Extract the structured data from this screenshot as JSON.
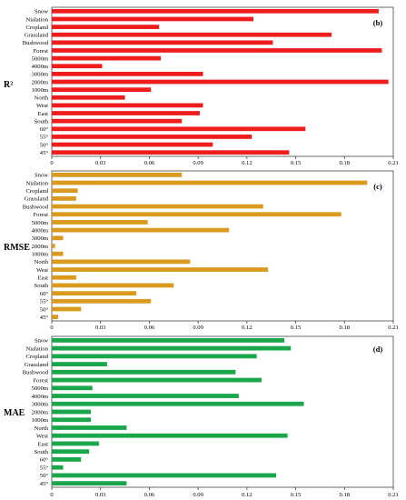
{
  "chart_data": [
    {
      "type": "bar",
      "orientation": "horizontal",
      "panel_label": "(b)",
      "ylabel": "R²",
      "color": "#ee1c1c",
      "xlim": [
        0,
        0.21
      ],
      "xticks": [
        "0",
        "0.03",
        "0.06",
        "0.09",
        "0.12",
        "0.15",
        "0.18",
        "0.21"
      ],
      "categories": [
        "Snow",
        "Nialation",
        "Cropland",
        "Grassland",
        "Bushwood",
        "Forest",
        "5000m",
        "4000m",
        "3000m",
        "2000m",
        "1000m",
        "North",
        "West",
        "East",
        "South",
        "60°",
        "55°",
        "50°",
        "45°"
      ],
      "values": [
        0.201,
        0.124,
        0.066,
        0.172,
        0.136,
        0.203,
        0.067,
        0.031,
        0.093,
        0.207,
        0.061,
        0.045,
        0.093,
        0.091,
        0.08,
        0.156,
        0.123,
        0.099,
        0.146
      ]
    },
    {
      "type": "bar",
      "orientation": "horizontal",
      "panel_label": "(c)",
      "ylabel": "RMSE",
      "color": "#d99a1e",
      "xlim": [
        0,
        0.21
      ],
      "xticks": [
        "0",
        "0.03",
        "0.06",
        "0.09",
        "0.12",
        "0.15",
        "0.18",
        "0.21"
      ],
      "categories": [
        "Snow",
        "Nialation",
        "Cropland",
        "Grassland",
        "Bushwood",
        "Forest",
        "5000m",
        "4000m",
        "3000m",
        "2000m",
        "1000m",
        "North",
        "West",
        "East",
        "South",
        "60°",
        "55°",
        "50°",
        "45°"
      ],
      "values": [
        0.08,
        0.194,
        0.016,
        0.015,
        0.13,
        0.178,
        0.059,
        0.109,
        0.007,
        0.002,
        0.007,
        0.085,
        0.133,
        0.015,
        0.075,
        0.052,
        0.061,
        0.018,
        0.004
      ]
    },
    {
      "type": "bar",
      "orientation": "horizontal",
      "panel_label": "(d)",
      "ylabel": "MAE",
      "color": "#1aa64a",
      "xlim": [
        0,
        0.21
      ],
      "xticks": [
        "0",
        "0.03",
        "0.06",
        "0.09",
        "0.12",
        "0.15",
        "0.18",
        "0.21"
      ],
      "categories": [
        "Snow",
        "Nialation",
        "Cropland",
        "Grassland",
        "Bushwood",
        "Forest",
        "5000m",
        "4000m",
        "3000m",
        "2000m",
        "1000m",
        "North",
        "West",
        "East",
        "South",
        "60°",
        "55°",
        "50°",
        "45°"
      ],
      "values": [
        0.143,
        0.147,
        0.126,
        0.034,
        0.113,
        0.129,
        0.025,
        0.115,
        0.155,
        0.024,
        0.024,
        0.046,
        0.145,
        0.029,
        0.023,
        0.018,
        0.007,
        0.138,
        0.046
      ]
    }
  ]
}
